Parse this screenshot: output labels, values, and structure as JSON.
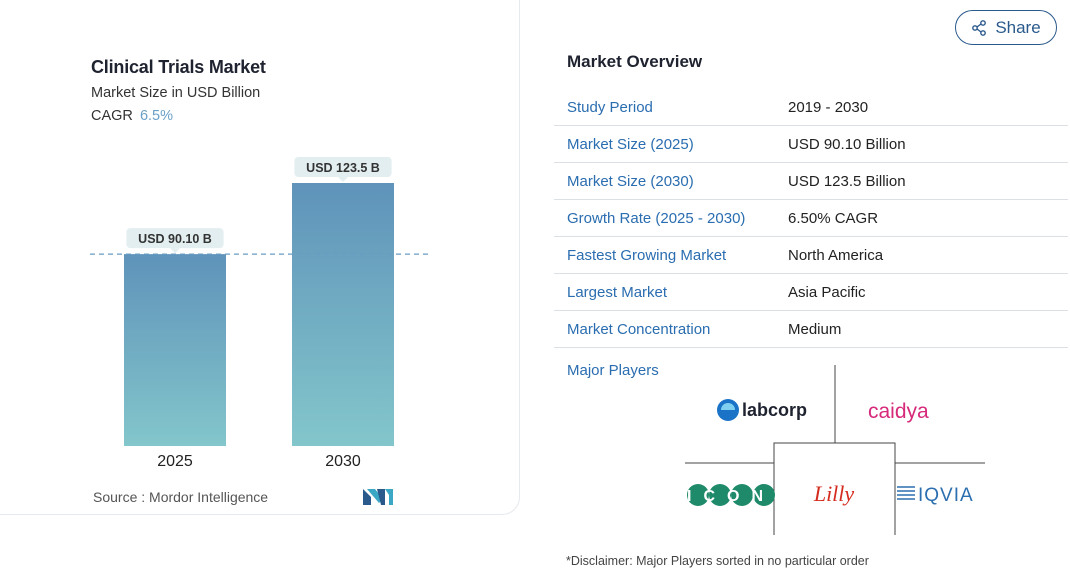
{
  "chart_data": {
    "type": "bar",
    "title": "Clinical Trials Market",
    "subtitle": "Market Size in USD Billion",
    "cagr_label": "CAGR",
    "cagr_value": "6.5%",
    "categories": [
      "2025",
      "2030"
    ],
    "values": [
      90.1,
      123.5
    ],
    "data_labels": [
      "USD 90.10 B",
      "USD 123.5 B"
    ],
    "xlabel": "",
    "ylabel": "",
    "ylim": [
      0,
      123.5
    ],
    "grid": false,
    "reference_line_value": 90.1,
    "bar_gradient": [
      "#5f93ba",
      "#83c6cb"
    ],
    "source": "Source :  Mordor Intelligence"
  },
  "share": {
    "label": "Share",
    "icon": "share-icon"
  },
  "overview": {
    "title": "Market Overview",
    "rows": [
      {
        "key": "Study Period",
        "value": "2019 - 2030"
      },
      {
        "key": "Market Size (2025)",
        "value": "USD 90.10 Billion"
      },
      {
        "key": "Market Size (2030)",
        "value": "USD 123.5 Billion"
      },
      {
        "key": "Growth Rate (2025 - 2030)",
        "value": "6.50% CAGR"
      },
      {
        "key": "Fastest Growing Market",
        "value": "North America"
      },
      {
        "key": "Largest Market",
        "value": "Asia Pacific"
      },
      {
        "key": "Market Concentration",
        "value": "Medium"
      }
    ],
    "major_players_label": "Major Players",
    "players": [
      "labcorp",
      "caidya",
      "ICON",
      "Lilly",
      "IQVIA"
    ],
    "disclaimer": "*Disclaimer: Major Players sorted in no particular order"
  },
  "colors": {
    "accent_blue": "#2a6db0",
    "share_border": "#2a5a8c",
    "caidya_pink": "#d6297a",
    "icon_green": "#1f8a6a",
    "lilly_red": "#d52b1e",
    "iqvia_blue": "#2c6fb0"
  }
}
